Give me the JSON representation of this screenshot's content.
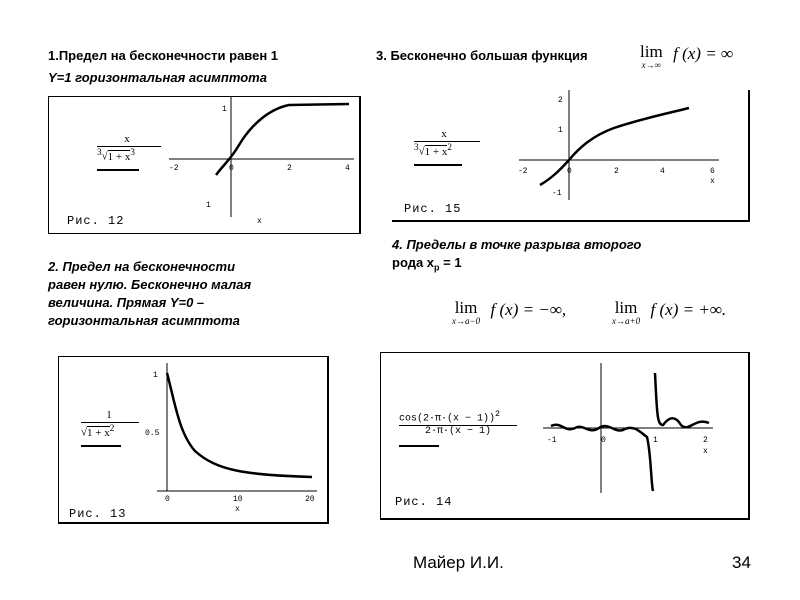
{
  "sections": {
    "s1": {
      "title": "1.Предел на бесконечности равен 1",
      "subtitle": "Y=1 горизонтальная асимптота"
    },
    "s2": {
      "lines": [
        "2. Предел на бесконечности",
        "равен нулю. Бесконечно малая",
        "величина. Прямая Y=0 –",
        "горизонтальная асимптота"
      ]
    },
    "s3": {
      "title": "3.  Бесконечно большая функция"
    },
    "s4": {
      "lines": [
        "4. Пределы в точке разрыва второго",
        "рода x",
        "р",
        " = 1"
      ]
    }
  },
  "formulas": {
    "f1": {
      "num": "x",
      "den_root": "3",
      "den_body": "1 + x",
      "den_exp": "3"
    },
    "f2": {
      "num": "1",
      "den_body": "1 + x",
      "den_exp": "2"
    },
    "f3": {
      "num": "x",
      "den_root": "3",
      "den_body": "1 + x",
      "den_exp": "2"
    },
    "f4": {
      "num_a": "cos(2·π·(x − 1))",
      "num_exp": "2",
      "den": "2·π·(x − 1)"
    },
    "lim3": {
      "lim": "lim",
      "sub": "x→∞",
      "expr": "f (x) = ∞"
    },
    "lim4a": {
      "lim": "lim",
      "sub": "x→a−0",
      "expr": "f (x) = −∞,"
    },
    "lim4b": {
      "lim": "lim",
      "sub": "x→a+0",
      "expr": "f (x) = +∞."
    }
  },
  "figures": {
    "fig12": {
      "caption": "Рис. 12",
      "xticks": [
        "-2",
        "0",
        "2",
        "4"
      ],
      "yticks": [
        "1",
        "1"
      ],
      "xlabel": "x"
    },
    "fig13": {
      "caption": "Рис. 13",
      "xticks": [
        "0",
        "10",
        "20"
      ],
      "yticks": [
        "1",
        "0.5"
      ],
      "xlabel": "x"
    },
    "fig15": {
      "caption": "Рис. 15",
      "xticks": [
        "-2",
        "0",
        "2",
        "4",
        "6"
      ],
      "yticks": [
        "2",
        "1",
        "-1"
      ],
      "xlabel": "x"
    },
    "fig14": {
      "caption": "Рис. 14",
      "xticks": [
        "-1",
        "0",
        "1",
        "2"
      ],
      "xlabel": "x"
    }
  },
  "footer": {
    "author": "Майер И.И.",
    "page": "34"
  }
}
